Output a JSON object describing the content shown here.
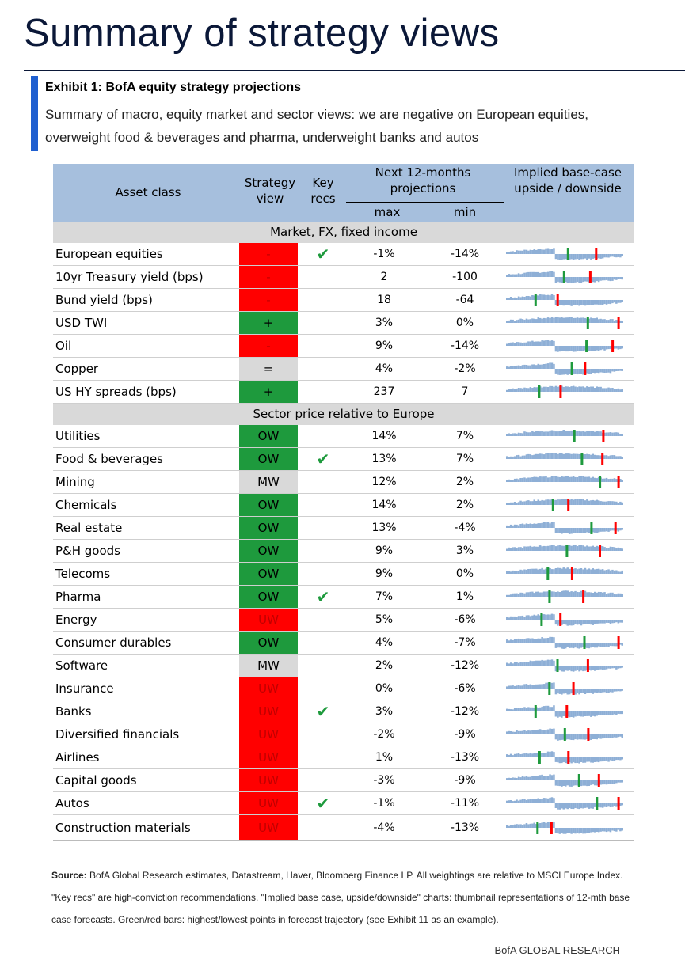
{
  "page_title": "Summary of strategy views",
  "exhibit": {
    "title": "Exhibit 1: BofA equity strategy projections",
    "subtitle": "Summary of macro, equity market and sector views: we are negative on European equities, overweight food & beverages and pharma, underweight banks and autos"
  },
  "table": {
    "headers": {
      "asset_class": "Asset class",
      "strategy_view": "Strategy view",
      "key_recs": "Key recs",
      "projections": "Next 12-months projections",
      "max": "max",
      "min": "min",
      "implied": "Implied base-case upside / downside"
    },
    "colors": {
      "green": "#1e9a3d",
      "red": "#ff0000",
      "grey": "#d9d9d9",
      "spark": "#8eafd6"
    },
    "sections": [
      {
        "title": "Market, FX, fixed income",
        "rows": [
          {
            "asset": "European equities",
            "view": "-",
            "color": "red",
            "key_rec": true,
            "max": "-1%",
            "min": "-14%"
          },
          {
            "asset": "10yr Treasury yield (bps)",
            "view": "-",
            "color": "red",
            "key_rec": false,
            "max": "2",
            "min": "-100"
          },
          {
            "asset": "Bund yield (bps)",
            "view": "-",
            "color": "red",
            "key_rec": false,
            "max": "18",
            "min": "-64"
          },
          {
            "asset": "USD TWI",
            "view": "+",
            "color": "green",
            "key_rec": false,
            "max": "3%",
            "min": "0%"
          },
          {
            "asset": "Oil",
            "view": "-",
            "color": "red",
            "key_rec": false,
            "max": "9%",
            "min": "-14%"
          },
          {
            "asset": "Copper",
            "view": "=",
            "color": "grey",
            "key_rec": false,
            "max": "4%",
            "min": "-2%"
          },
          {
            "asset": "US HY spreads (bps)",
            "view": "+",
            "color": "green",
            "key_rec": false,
            "max": "237",
            "min": "7"
          }
        ]
      },
      {
        "title": "Sector price relative to Europe",
        "rows": [
          {
            "asset": "Utilities",
            "view": "OW",
            "color": "green",
            "key_rec": false,
            "max": "14%",
            "min": "7%"
          },
          {
            "asset": "Food & beverages",
            "view": "OW",
            "color": "green",
            "key_rec": true,
            "max": "13%",
            "min": "7%"
          },
          {
            "asset": "Mining",
            "view": "MW",
            "color": "grey",
            "key_rec": false,
            "max": "12%",
            "min": "2%"
          },
          {
            "asset": "Chemicals",
            "view": "OW",
            "color": "green",
            "key_rec": false,
            "max": "14%",
            "min": "2%"
          },
          {
            "asset": "Real estate",
            "view": "OW",
            "color": "green",
            "key_rec": false,
            "max": "13%",
            "min": "-4%"
          },
          {
            "asset": "P&H goods",
            "view": "OW",
            "color": "green",
            "key_rec": false,
            "max": "9%",
            "min": "3%"
          },
          {
            "asset": "Telecoms",
            "view": "OW",
            "color": "green",
            "key_rec": false,
            "max": "9%",
            "min": "0%"
          },
          {
            "asset": "Pharma",
            "view": "OW",
            "color": "green",
            "key_rec": true,
            "max": "7%",
            "min": "1%"
          },
          {
            "asset": "Energy",
            "view": "UW",
            "color": "red",
            "key_rec": false,
            "max": "5%",
            "min": "-6%"
          },
          {
            "asset": "Consumer durables",
            "view": "OW",
            "color": "green",
            "key_rec": false,
            "max": "4%",
            "min": "-7%"
          },
          {
            "asset": "Software",
            "view": "MW",
            "color": "grey",
            "key_rec": false,
            "max": "2%",
            "min": "-12%"
          },
          {
            "asset": "Insurance",
            "view": "UW",
            "color": "red",
            "key_rec": false,
            "max": "0%",
            "min": "-6%"
          },
          {
            "asset": "Banks",
            "view": "UW",
            "color": "red",
            "key_rec": true,
            "max": "3%",
            "min": "-12%"
          },
          {
            "asset": "Diversified financials",
            "view": "UW",
            "color": "red",
            "key_rec": false,
            "max": "-2%",
            "min": "-9%"
          },
          {
            "asset": "Airlines",
            "view": "UW",
            "color": "red",
            "key_rec": false,
            "max": "1%",
            "min": "-13%"
          },
          {
            "asset": "Capital goods",
            "view": "UW",
            "color": "red",
            "key_rec": false,
            "max": "-3%",
            "min": "-9%"
          },
          {
            "asset": "Autos",
            "view": "UW",
            "color": "red",
            "key_rec": true,
            "max": "-1%",
            "min": "-11%"
          },
          {
            "asset": "Construction materials",
            "view": "UW",
            "color": "red",
            "key_rec": false,
            "max": "-4%",
            "min": "-13%"
          }
        ]
      }
    ]
  },
  "source": {
    "label": "Source:",
    "text": "BofA Global Research estimates, Datastream, Haver, Bloomberg Finance LP. All weightings are relative to MSCI Europe Index. \"Key recs\" are high-conviction recommendations. \"Implied base case, upside/downside\" charts: thumbnail representations of 12-mth base case forecasts. Green/red bars: highest/lowest points in forecast trajectory (see Exhibit 11 as an example)."
  },
  "footer": "BofA GLOBAL RESEARCH"
}
